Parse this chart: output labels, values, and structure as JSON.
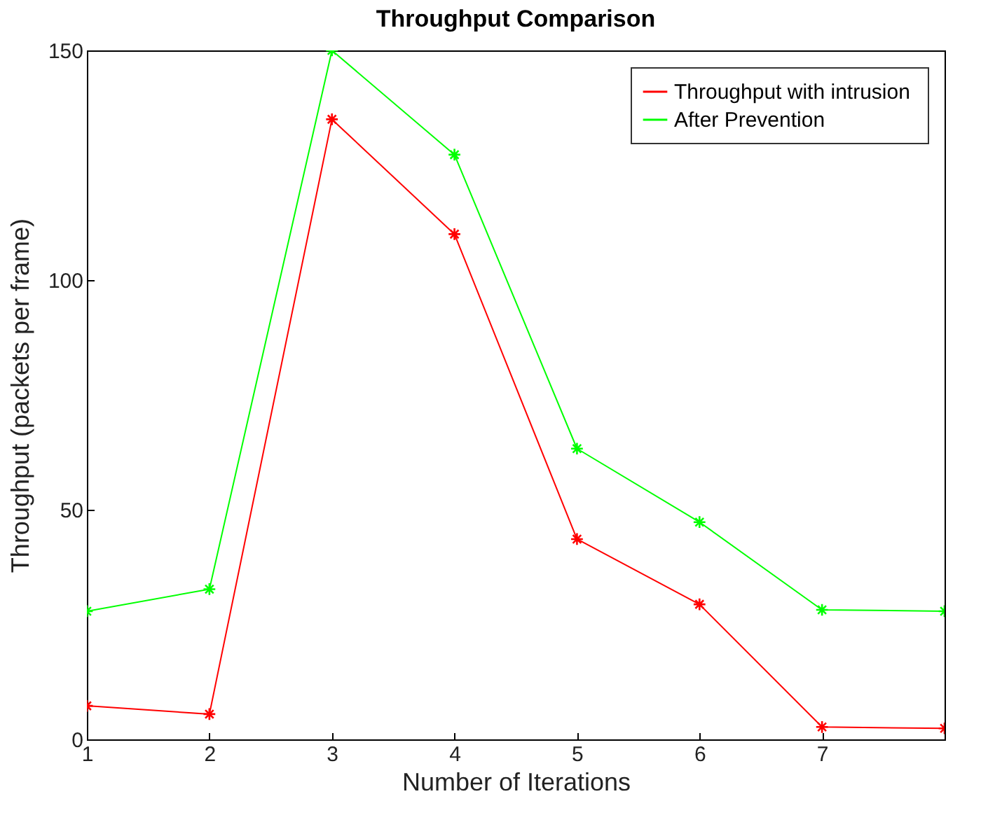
{
  "chart_data": {
    "type": "line",
    "title": "Throughput  Comparison",
    "xlabel": "Number of Iterations",
    "ylabel": "Throughput (packets per frame)",
    "x": [
      1,
      2,
      3,
      4,
      5,
      6,
      7,
      8
    ],
    "series": [
      {
        "name": "Throughput  with intrusion",
        "color": "#ff0000",
        "values": [
          7.3,
          5.5,
          135,
          110,
          43.6,
          29.4,
          2.7,
          2.4
        ]
      },
      {
        "name": "After Prevention",
        "color": "#00ff00",
        "values": [
          27.9,
          32.7,
          150,
          127.3,
          63.3,
          47.3,
          28.2,
          27.9
        ]
      }
    ],
    "xlim": [
      1,
      8
    ],
    "xticks": [
      1,
      2,
      3,
      4,
      5,
      6,
      7
    ],
    "ylim": [
      0,
      150
    ],
    "yticks": [
      0,
      50,
      100,
      150
    ],
    "marker": "cross",
    "legend": "top right",
    "grid": false
  }
}
